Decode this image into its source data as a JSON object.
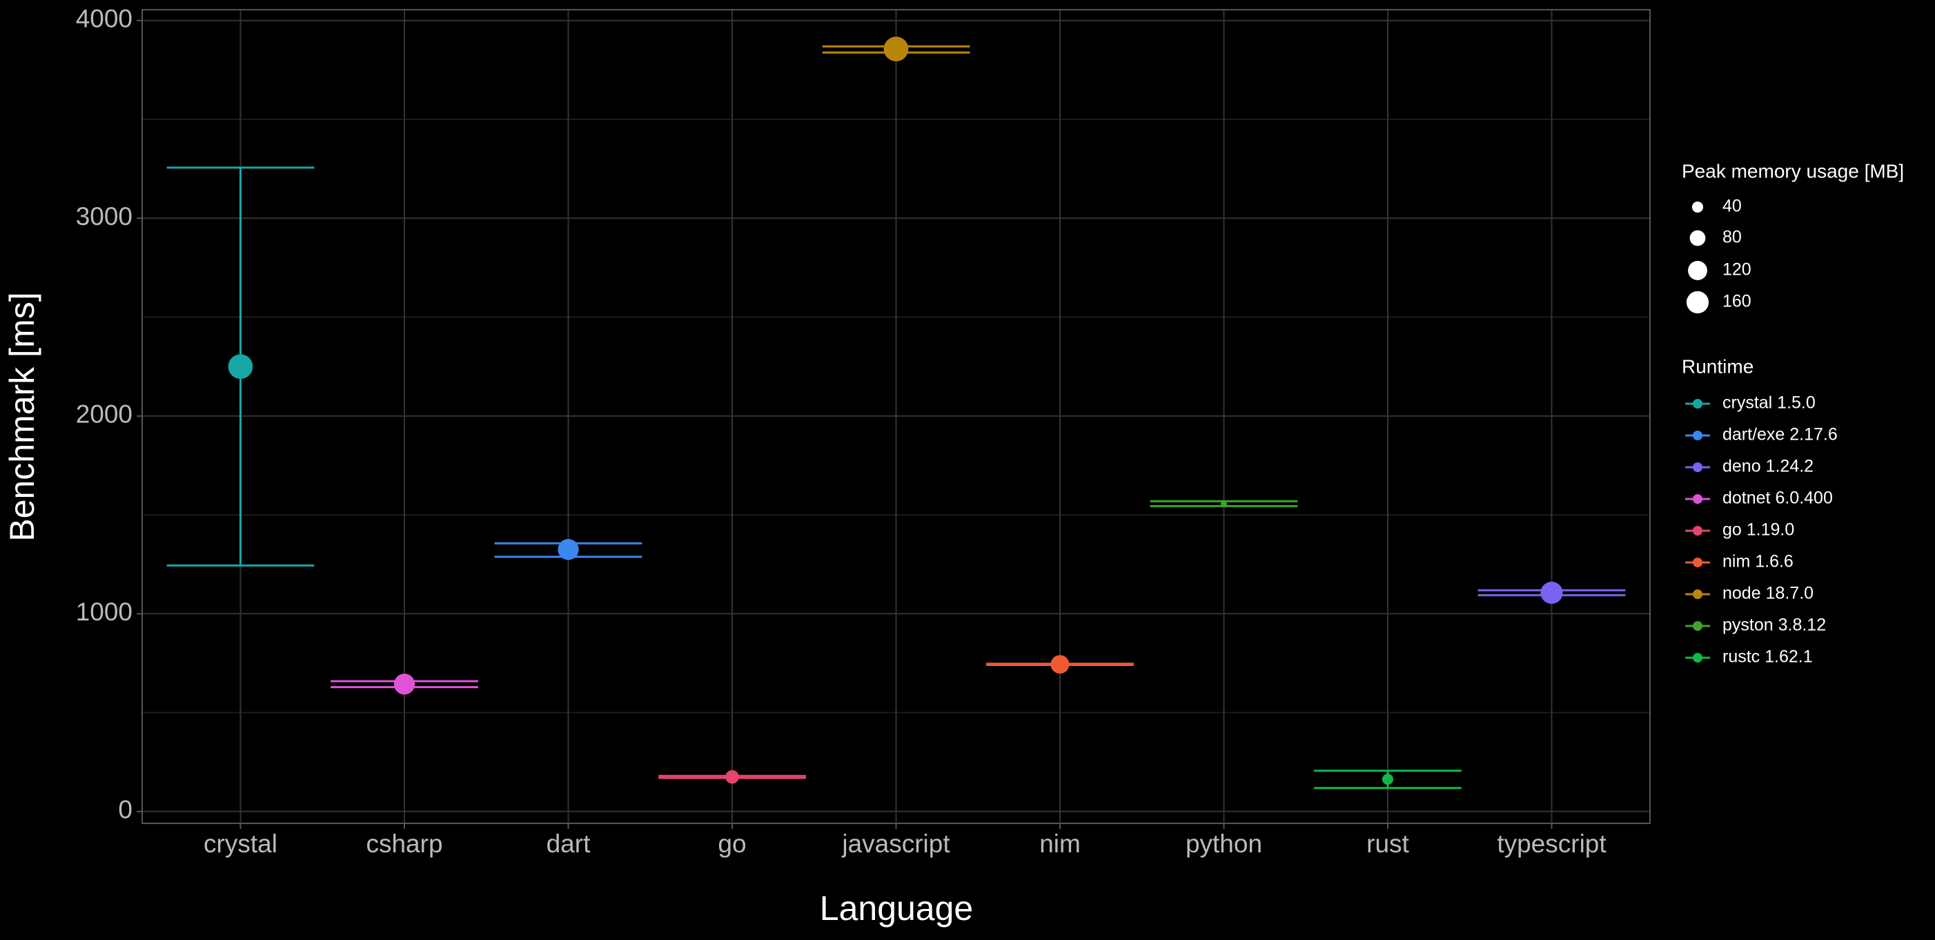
{
  "chart_data": {
    "type": "pointrange",
    "x_label": "Language",
    "y_label": "Benchmark [ms]",
    "categories": [
      "crystal",
      "csharp",
      "dart",
      "go",
      "javascript",
      "nim",
      "python",
      "rust",
      "typescript"
    ],
    "ylim": [
      -60,
      4055
    ],
    "yticks": [
      0,
      1000,
      2000,
      3000,
      4000
    ],
    "minor_yticks": [
      500,
      1500,
      2500,
      3500
    ],
    "grid": true,
    "size_legend_title": "Peak memory usage [MB]",
    "size_legend_values": [
      40,
      80,
      120,
      160
    ],
    "color_legend_title": "Runtime",
    "series": [
      {
        "name": "crystal 1.5.0",
        "color": "#17a6a6",
        "x": "crystal",
        "y": 2250,
        "ymin": 1244,
        "ymax": 3256,
        "size": 178
      },
      {
        "name": "dart/exe 2.17.6",
        "color": "#3b87f0",
        "x": "dart",
        "y": 1325,
        "ymin": 1288,
        "ymax": 1356,
        "size": 128
      },
      {
        "name": "deno 1.24.2",
        "color": "#7a63f0",
        "x": "typescript",
        "y": 1106,
        "ymin": 1094,
        "ymax": 1119,
        "size": 144
      },
      {
        "name": "dotnet 6.0.400",
        "color": "#e052d8",
        "x": "csharp",
        "y": 644,
        "ymin": 629,
        "ymax": 659,
        "size": 128
      },
      {
        "name": "go 1.19.0",
        "color": "#e8436e",
        "x": "go",
        "y": 175,
        "ymin": 170,
        "ymax": 180,
        "size": 54
      },
      {
        "name": "nim 1.6.6",
        "color": "#f05a34",
        "x": "nim",
        "y": 744,
        "ymin": 741,
        "ymax": 747,
        "size": 100
      },
      {
        "name": "node 18.7.0",
        "color": "#b8860b",
        "x": "javascript",
        "y": 3856,
        "ymin": 3838,
        "ymax": 3869,
        "size": 178
      },
      {
        "name": "pyston 3.8.12",
        "color": "#3ea62c",
        "x": "python",
        "y": 1556,
        "ymin": 1544,
        "ymax": 1569,
        "size": 11
      },
      {
        "name": "rustc 1.62.1",
        "color": "#11b84a",
        "x": "rust",
        "y": 163,
        "ymin": 119,
        "ymax": 206,
        "size": 36
      }
    ]
  }
}
